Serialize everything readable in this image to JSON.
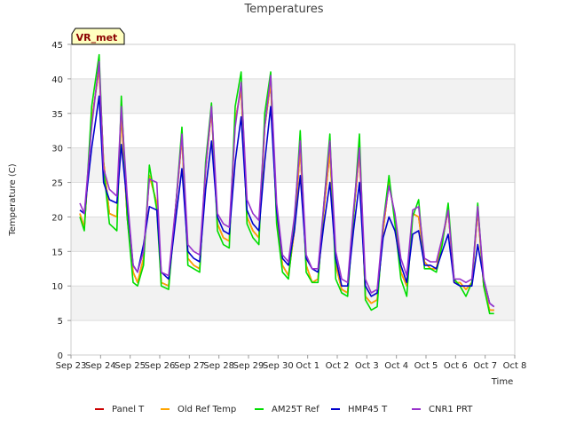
{
  "chart_data": {
    "type": "line",
    "title": "Temperatures",
    "xlabel": "Time",
    "ylabel": "Temperature (C)",
    "badge": "VR_met",
    "ylim": [
      0,
      45
    ],
    "yticks": [
      0,
      5,
      10,
      15,
      20,
      25,
      30,
      35,
      40,
      45
    ],
    "xlim": [
      0,
      15
    ],
    "xticks": [
      {
        "pos": 0,
        "label": "Sep 23"
      },
      {
        "pos": 1,
        "label": "Sep 24"
      },
      {
        "pos": 2,
        "label": "Sep 25"
      },
      {
        "pos": 3,
        "label": "Sep 26"
      },
      {
        "pos": 4,
        "label": "Sep 27"
      },
      {
        "pos": 5,
        "label": "Sep 28"
      },
      {
        "pos": 6,
        "label": "Sep 29"
      },
      {
        "pos": 7,
        "label": "Sep 30"
      },
      {
        "pos": 8,
        "label": "Oct 1"
      },
      {
        "pos": 9,
        "label": "Oct 2"
      },
      {
        "pos": 10,
        "label": "Oct 3"
      },
      {
        "pos": 11,
        "label": "Oct 4"
      },
      {
        "pos": 12,
        "label": "Oct 5"
      },
      {
        "pos": 13,
        "label": "Oct 6"
      },
      {
        "pos": 14,
        "label": "Oct 7"
      },
      {
        "pos": 15,
        "label": "Oct 8"
      }
    ],
    "x": [
      0.3,
      0.45,
      0.7,
      0.95,
      1.1,
      1.3,
      1.55,
      1.7,
      1.9,
      2.1,
      2.25,
      2.45,
      2.65,
      2.9,
      3.05,
      3.3,
      3.55,
      3.75,
      3.95,
      4.15,
      4.35,
      4.55,
      4.75,
      4.95,
      5.15,
      5.35,
      5.55,
      5.75,
      5.95,
      6.15,
      6.35,
      6.55,
      6.75,
      6.95,
      7.15,
      7.35,
      7.55,
      7.75,
      7.95,
      8.15,
      8.35,
      8.55,
      8.75,
      8.95,
      9.15,
      9.35,
      9.55,
      9.75,
      9.95,
      10.15,
      10.35,
      10.55,
      10.75,
      10.95,
      11.15,
      11.35,
      11.55,
      11.75,
      11.95,
      12.15,
      12.35,
      12.55,
      12.75,
      12.95,
      13.15,
      13.35,
      13.55,
      13.75,
      13.95,
      14.15,
      14.3
    ],
    "series": [
      {
        "name": "Panel T",
        "color": "#cc0000",
        "values": [
          20.5,
          18.5,
          34,
          41.5,
          28,
          20.5,
          20,
          35,
          20,
          12,
          10.5,
          14,
          26,
          22,
          10.5,
          10,
          22,
          31.5,
          14,
          13,
          12.5,
          27,
          35.5,
          19,
          17,
          16.5,
          34,
          38.5,
          20,
          18,
          17,
          33,
          39.5,
          20,
          13,
          11.5,
          18,
          30,
          13,
          10.5,
          11,
          21,
          29.5,
          13,
          9.5,
          9,
          20,
          29.5,
          8.5,
          7.5,
          8,
          18,
          25,
          20,
          12,
          10,
          20.5,
          20,
          13.5,
          12.5,
          12.5,
          16.5,
          21,
          10.5,
          10.5,
          9.5,
          10.5,
          21,
          10,
          6.5,
          6.5
        ]
      },
      {
        "name": "Old Ref Temp",
        "color": "#ffa500",
        "values": [
          20.5,
          18.5,
          34,
          41.5,
          28,
          20.5,
          20,
          35,
          20,
          12,
          10.5,
          14,
          26,
          22,
          10.5,
          10,
          22,
          31.5,
          14,
          13,
          12.5,
          27,
          35.5,
          19,
          17,
          16.5,
          34,
          38.5,
          20,
          18,
          17,
          33,
          39.5,
          20,
          13,
          11.5,
          18,
          30,
          13,
          10.5,
          11,
          21,
          29.5,
          13,
          9.5,
          9,
          20,
          29.5,
          8.5,
          7.5,
          8,
          18,
          25,
          20,
          12,
          10,
          20.5,
          20,
          13.5,
          12.5,
          12.5,
          16.5,
          21,
          10.5,
          10.5,
          9.5,
          10.5,
          21,
          10,
          6.5,
          6.5
        ]
      },
      {
        "name": "AM25T Ref",
        "color": "#00dd00",
        "values": [
          20,
          18,
          36,
          43.5,
          27,
          19,
          18,
          37.5,
          20,
          10.5,
          10,
          13,
          27.5,
          21,
          10,
          9.5,
          22,
          33,
          13,
          12.5,
          12,
          28,
          36.5,
          18,
          16,
          15.5,
          36,
          41,
          19,
          17,
          16,
          35,
          41,
          19,
          12,
          11,
          19,
          32.5,
          12,
          10.5,
          10.5,
          22,
          32,
          11,
          9,
          8.5,
          20,
          32,
          8,
          6.5,
          7,
          19,
          26,
          19,
          11,
          8.5,
          20,
          22.5,
          12.5,
          12.5,
          12,
          16,
          22,
          11,
          10,
          8.5,
          10.5,
          22,
          10,
          6,
          6
        ]
      },
      {
        "name": "HMP45 T",
        "color": "#0000cc",
        "values": [
          21,
          20.5,
          30,
          37.5,
          25,
          22.5,
          22,
          30.5,
          22,
          13,
          12,
          16,
          21.5,
          21,
          12,
          11,
          20,
          27,
          15,
          14,
          13.5,
          24,
          31,
          20,
          18,
          17.5,
          28,
          34.5,
          21,
          19,
          18,
          28,
          36,
          21,
          14,
          13,
          18,
          26,
          14,
          12.5,
          12,
          19,
          25,
          14,
          10,
          10,
          18,
          25,
          10,
          8.5,
          9,
          17,
          20,
          18,
          13,
          10.5,
          17.5,
          18,
          13,
          13,
          12.5,
          15,
          17.5,
          10.5,
          10,
          10,
          10,
          16,
          11,
          7.5,
          7
        ]
      },
      {
        "name": "CNR1 PRT",
        "color": "#9932cc",
        "values": [
          22,
          20.5,
          33,
          42.5,
          27,
          24,
          23,
          36,
          23,
          13,
          12,
          15,
          25.5,
          25,
          12,
          11.5,
          22,
          32,
          16,
          15,
          14.5,
          27,
          36,
          20.5,
          19,
          18.5,
          33,
          39.5,
          22.5,
          20.5,
          19.5,
          33,
          40.5,
          22,
          14.5,
          13.5,
          20,
          31,
          14.5,
          12.5,
          12.5,
          22,
          31,
          15,
          11,
          10.5,
          21,
          30,
          11,
          9,
          9.5,
          19,
          24.5,
          20.5,
          14,
          11.5,
          21,
          21.5,
          14,
          13.5,
          13.5,
          17,
          21,
          11,
          11,
          10.5,
          11,
          21.5,
          11,
          7.5,
          7
        ]
      }
    ]
  }
}
